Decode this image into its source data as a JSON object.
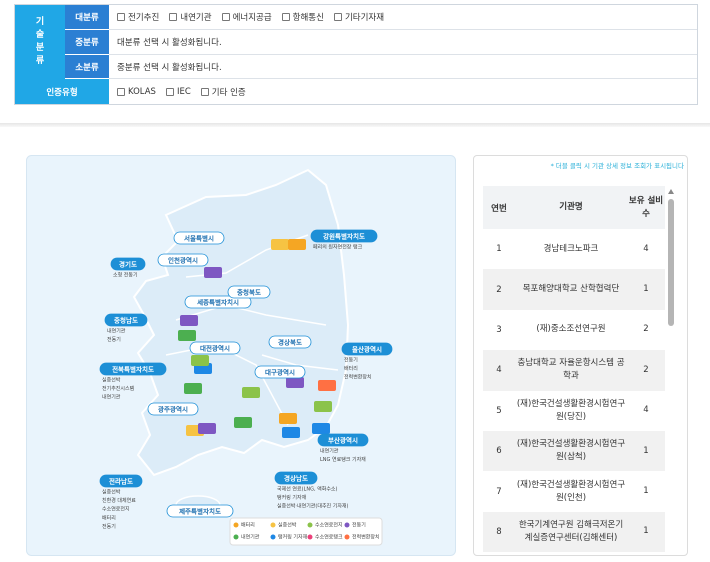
{
  "filter": {
    "group_label": "기술분류",
    "rows": [
      {
        "label": "대분류",
        "options": [
          "전기추진",
          "내연기관",
          "에너지공급",
          "항해통신",
          "기타기자재"
        ]
      },
      {
        "label": "중분류",
        "text": "대분류 선택 시 활성화됩니다."
      },
      {
        "label": "소분류",
        "text": "중분류 선택 시 활성화됩니다."
      }
    ],
    "cert": {
      "label": "인증유형",
      "options": [
        "KOLAS",
        "IEC",
        "기타 인증"
      ]
    }
  },
  "map": {
    "regions": [
      {
        "name": "서울특별시",
        "bullets": []
      },
      {
        "name": "인천광역시",
        "bullets": []
      },
      {
        "name": "경기도",
        "bullets": [
          "소형 전동기"
        ]
      },
      {
        "name": "세종특별자치시",
        "bullets": []
      },
      {
        "name": "충청북도",
        "bullets": []
      },
      {
        "name": "충청남도",
        "bullets": [
          "내연기관",
          "전동기"
        ]
      },
      {
        "name": "대전광역시",
        "bullets": []
      },
      {
        "name": "경상북도",
        "bullets": []
      },
      {
        "name": "대구광역시",
        "bullets": []
      },
      {
        "name": "전북특별자치도",
        "bullets": [
          "실증선박",
          "전기추진시스템",
          "내연기관"
        ]
      },
      {
        "name": "광주광역시",
        "bullets": []
      },
      {
        "name": "전라남도",
        "bullets": [
          "실증선박",
          "친환경 대체연료",
          "수소연료전지",
          "배터리",
          "전동기"
        ]
      },
      {
        "name": "강원특별자치도",
        "bullets": [
          "페리의 원자연전장 탱크"
        ]
      },
      {
        "name": "울산광역시",
        "bullets": [
          "전동기",
          "배터리",
          "전력변환장치"
        ]
      },
      {
        "name": "부산광역시",
        "bullets": [
          "내연기관",
          "LNG 연료탱크 기자재"
        ]
      },
      {
        "name": "경상남도",
        "bullets": [
          "국제선 연료(LNG, 액화수소)",
          "탱커링 기자재",
          "실증선박·내연기관(대추진 기자재)"
        ]
      },
      {
        "name": "제주특별자치도",
        "bullets": []
      }
    ],
    "legend": [
      {
        "name": "배터리",
        "color": "#f5a623"
      },
      {
        "name": "실증선박",
        "color": "#f6c343"
      },
      {
        "name": "수소연료전지",
        "color": "#8bc34a"
      },
      {
        "name": "전동기",
        "color": "#7e57c2"
      },
      {
        "name": "내연기관",
        "color": "#4caf50"
      },
      {
        "name": "탱커링 기자재",
        "color": "#1e88e5"
      },
      {
        "name": "수소연료탱크",
        "color": "#ec407a"
      },
      {
        "name": "전력변환장치",
        "color": "#ff7043"
      }
    ]
  },
  "list": {
    "note": "* 더블 클릭 시 기관 상세 정보 조회가 표시됩니다",
    "headers": [
      "연번",
      "기관명",
      "보유 설비수"
    ],
    "rows": [
      [
        1,
        "경남테크노파크",
        4
      ],
      [
        2,
        "목포해양대학교 산학협력단",
        1
      ],
      [
        3,
        "(재)중소조선연구원",
        2
      ],
      [
        4,
        "충남대학교 자율운항시스템 공학과",
        2
      ],
      [
        5,
        "(재)한국건설생활환경시험연구원(당진)",
        4
      ],
      [
        6,
        "(재)한국건설생활환경시험연구원(삼척)",
        1
      ],
      [
        7,
        "(재)한국건설생활환경시험연구원(인천)",
        1
      ],
      [
        8,
        "한국기계연구원 김해극저온기계실증연구센터(김해센터)",
        1
      ]
    ]
  }
}
